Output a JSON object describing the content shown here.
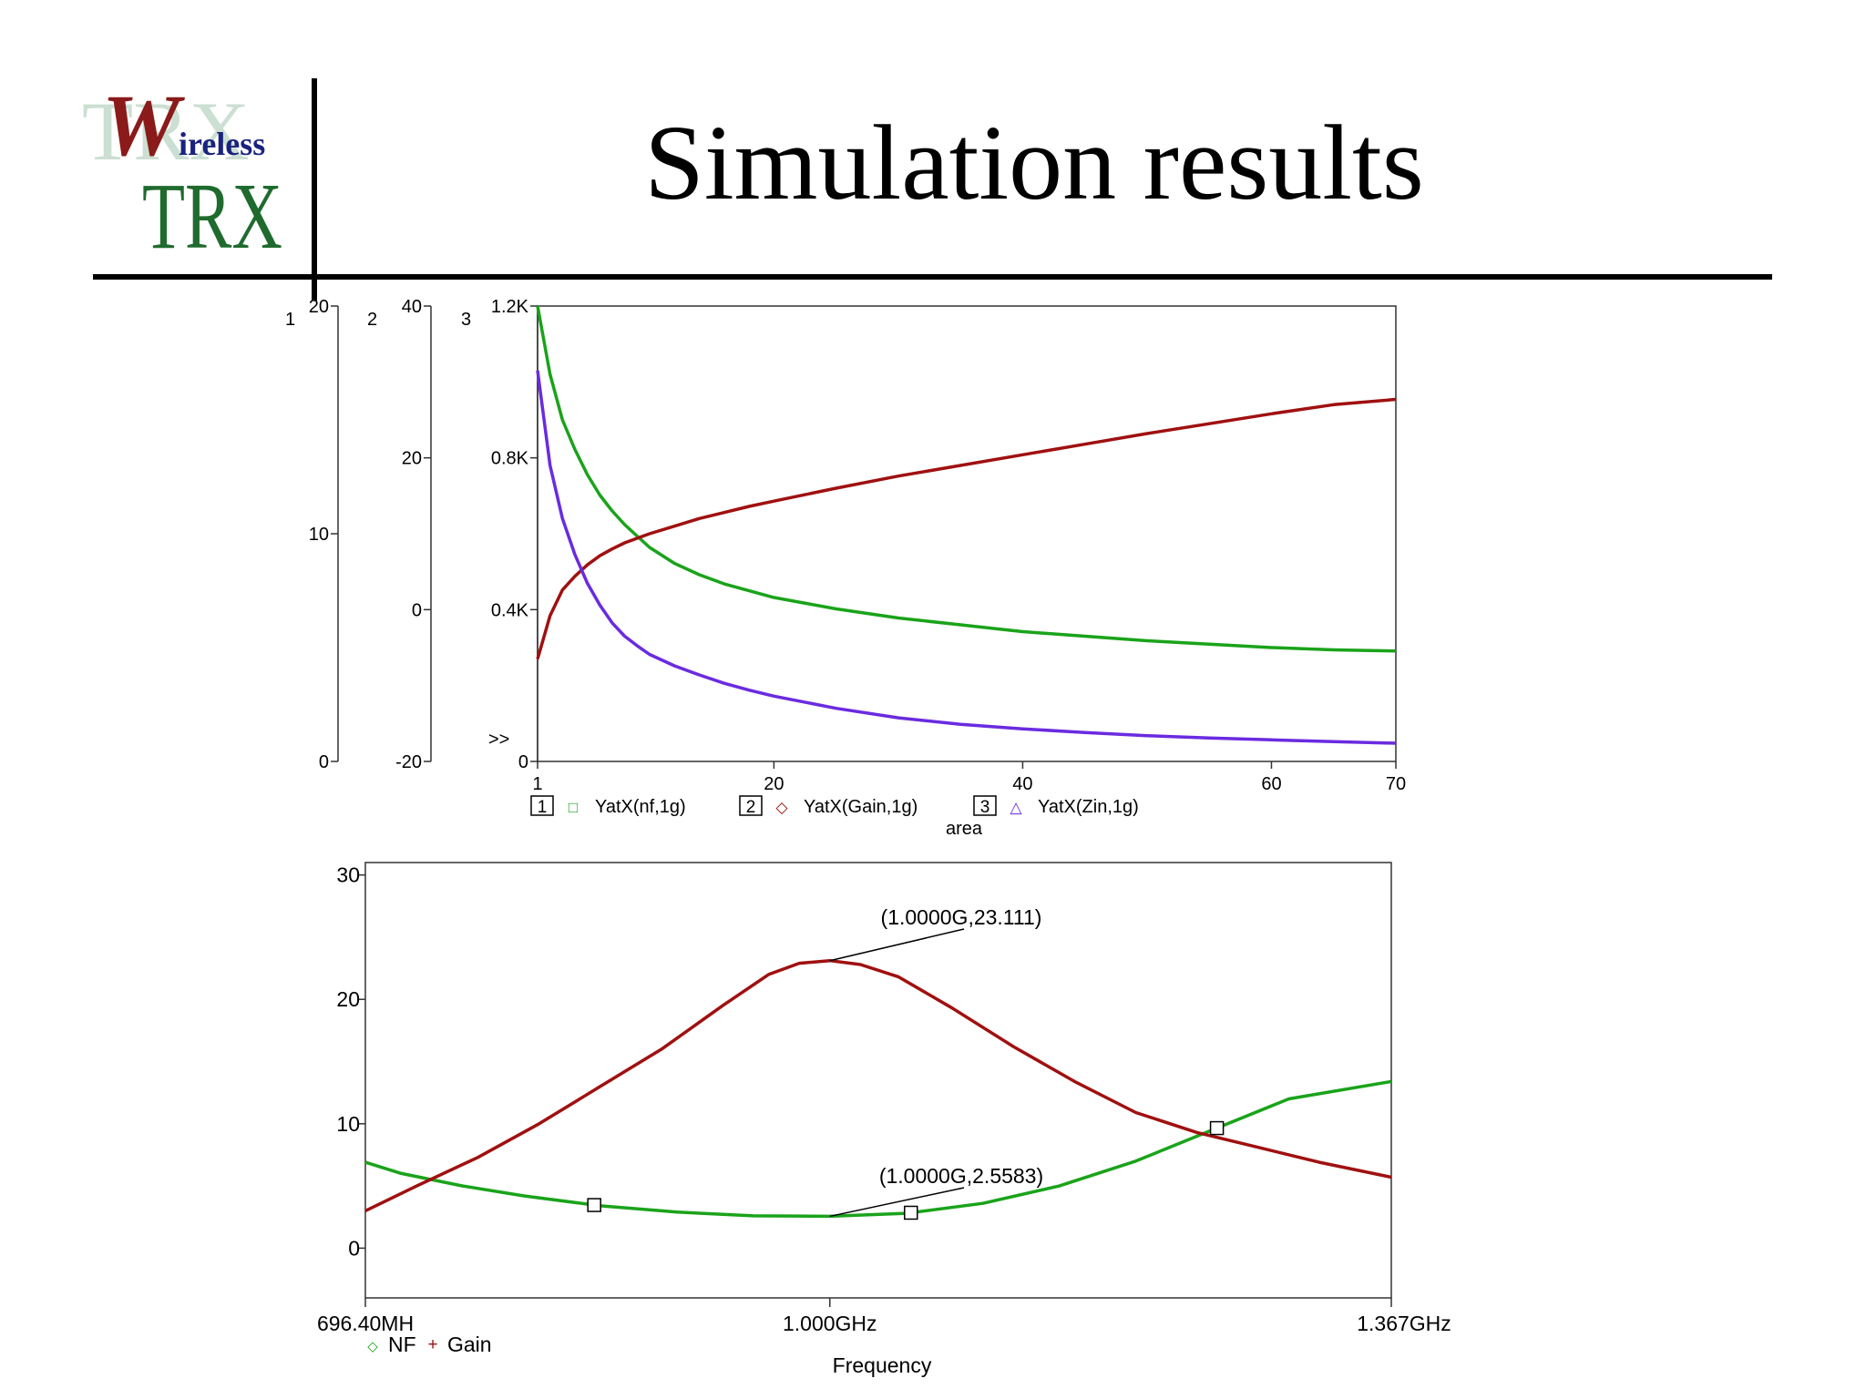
{
  "slide": {
    "title": "Simulation results",
    "logo": {
      "big_letter": "W",
      "word": "ireless",
      "brand": "TRX",
      "watermark": "TRX"
    }
  },
  "colors": {
    "green": "#1aa31a",
    "red": "#a01010",
    "purple": "#6a2be0",
    "text": "#000000"
  },
  "chart_data": [
    {
      "type": "line",
      "xlabel": "area",
      "xlim": [
        1,
        70
      ],
      "x_ticks": [
        "1",
        "20",
        "40",
        "60",
        "70"
      ],
      "axes": [
        {
          "id": "1",
          "range": [
            0,
            20
          ],
          "tick_labels": [
            "0",
            "10",
            "20"
          ]
        },
        {
          "id": "2",
          "range": [
            -20,
            40
          ],
          "tick_labels": [
            "-20",
            "0",
            "20",
            "40"
          ]
        },
        {
          "id": "3",
          "range": [
            0,
            1200
          ],
          "tick_labels": [
            "0",
            "0.4K",
            "0.8K",
            "1.2K"
          ]
        }
      ],
      "axis_marker": ">>",
      "legend": [
        {
          "axis": "1",
          "symbol": "□",
          "name": "YatX(nf,1g)"
        },
        {
          "axis": "2",
          "symbol": "◇",
          "name": "YatX(Gain,1g)"
        },
        {
          "axis": "3",
          "symbol": "△",
          "name": "YatX(Zin,1g)"
        }
      ],
      "series": [
        {
          "name": "YatX(nf,1g)",
          "axis": "1",
          "color": "green",
          "x": [
            1,
            2,
            3,
            4,
            5,
            6,
            7,
            8,
            9,
            10,
            12,
            14,
            16,
            18,
            20,
            25,
            30,
            35,
            40,
            45,
            50,
            55,
            60,
            65,
            70
          ],
          "y": [
            20,
            17,
            15,
            13.7,
            12.6,
            11.7,
            11.0,
            10.4,
            9.9,
            9.4,
            8.7,
            8.2,
            7.8,
            7.5,
            7.2,
            6.7,
            6.3,
            6.0,
            5.7,
            5.5,
            5.3,
            5.15,
            5.0,
            4.9,
            4.85
          ]
        },
        {
          "name": "YatX(Gain,1g)",
          "axis": "2",
          "color": "red",
          "x": [
            1,
            2,
            3,
            4,
            5,
            6,
            7,
            8,
            9,
            10,
            12,
            14,
            16,
            18,
            20,
            25,
            30,
            35,
            40,
            45,
            50,
            55,
            60,
            65,
            70
          ],
          "y": [
            -6.5,
            -0.8,
            2.6,
            4.4,
            5.9,
            7.1,
            8.0,
            8.8,
            9.4,
            10.0,
            11.0,
            12.0,
            12.8,
            13.6,
            14.3,
            16.0,
            17.6,
            19.0,
            20.4,
            21.8,
            23.2,
            24.5,
            25.8,
            27.0,
            27.7
          ]
        },
        {
          "name": "YatX(Zin,1g)",
          "axis": "3",
          "color": "purple",
          "x": [
            1,
            2,
            3,
            4,
            5,
            6,
            7,
            8,
            9,
            10,
            12,
            14,
            16,
            18,
            20,
            25,
            30,
            35,
            40,
            45,
            50,
            55,
            60,
            65,
            70
          ],
          "y": [
            1030,
            780,
            640,
            545,
            470,
            412,
            365,
            330,
            305,
            282,
            252,
            228,
            206,
            188,
            172,
            140,
            115,
            98,
            86,
            76,
            68,
            62,
            57,
            52,
            48
          ]
        }
      ]
    },
    {
      "type": "line",
      "xlabel": "Frequency",
      "x_ticks": [
        "696.40MH",
        "1.000GHz",
        "1.367GHz"
      ],
      "x_units": "MHz",
      "xlim": [
        696.4,
        1367
      ],
      "ylim": [
        -4,
        31
      ],
      "y_ticks": [
        "0",
        "10",
        "20",
        "30"
      ],
      "legend": [
        {
          "symbol": "◇",
          "name": "NF",
          "color": "green"
        },
        {
          "symbol": "+",
          "name": "Gain",
          "color": "red"
        }
      ],
      "annotations": [
        {
          "text": "(1.0000G,23.111)",
          "x": 1000,
          "y": 23.111
        },
        {
          "text": "(1.0000G,2.5583)",
          "x": 1000,
          "y": 2.5583
        }
      ],
      "series": [
        {
          "name": "NF",
          "color": "green",
          "x": [
            696.4,
            720,
            760,
            800,
            850,
            900,
            950,
            1000,
            1050,
            1100,
            1150,
            1200,
            1250,
            1300,
            1367
          ],
          "y": [
            6.9,
            6.0,
            5.0,
            4.2,
            3.4,
            2.9,
            2.6,
            2.56,
            2.8,
            3.6,
            5.0,
            7.0,
            9.5,
            12.0,
            13.4
          ],
          "markers_x": [
            846,
            1053,
            1253
          ]
        },
        {
          "name": "Gain",
          "color": "red",
          "x": [
            696.4,
            730,
            770,
            810,
            850,
            890,
            930,
            960,
            980,
            1000,
            1020,
            1045,
            1080,
            1120,
            1160,
            1200,
            1240,
            1280,
            1320,
            1367
          ],
          "y": [
            3.0,
            5.0,
            7.3,
            10.0,
            13.0,
            16.0,
            19.5,
            22.0,
            22.9,
            23.111,
            22.8,
            21.8,
            19.3,
            16.2,
            13.4,
            10.9,
            9.3,
            8.1,
            6.9,
            5.7
          ]
        }
      ]
    }
  ]
}
